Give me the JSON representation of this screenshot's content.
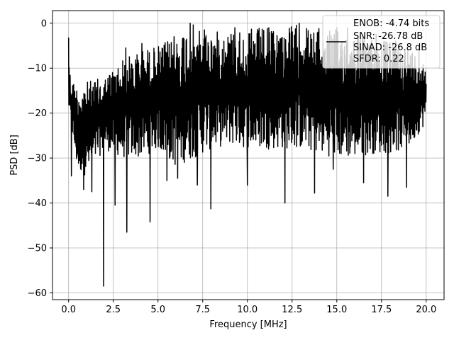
{
  "chart_data": {
    "type": "line",
    "title": "",
    "xlabel": "Frequency [MHz]",
    "ylabel": "PSD [dB]",
    "xlim": [
      -0.9,
      21.0
    ],
    "ylim": [
      -61.5,
      2.8
    ],
    "xticks": [
      0.0,
      2.5,
      5.0,
      7.5,
      10.0,
      12.5,
      15.0,
      17.5,
      20.0
    ],
    "xtick_labels": [
      "0.0",
      "2.5",
      "5.0",
      "7.5",
      "10.0",
      "12.5",
      "15.0",
      "17.5",
      "20.0"
    ],
    "yticks": [
      0,
      -10,
      -20,
      -30,
      -40,
      -50,
      -60
    ],
    "ytick_labels": [
      "0",
      "−10",
      "−20",
      "−30",
      "−40",
      "−50",
      "−60"
    ],
    "grid": true,
    "legend_position": "top-right",
    "series": [
      {
        "color": "#000000",
        "x_start": 0.0,
        "x_end": 20.0,
        "description": "noisy PSD trace, approx. -10 to -30 dB band",
        "envelope_upper": [
          [
            0,
            -3
          ],
          [
            0.1,
            -12
          ],
          [
            0.5,
            -14
          ],
          [
            1,
            -13
          ],
          [
            2,
            -12
          ],
          [
            3,
            -8
          ],
          [
            4,
            -6
          ],
          [
            5,
            -5
          ],
          [
            6,
            -3
          ],
          [
            6.8,
            0
          ],
          [
            8,
            -2
          ],
          [
            10,
            -1
          ],
          [
            12,
            -1
          ],
          [
            13,
            0
          ],
          [
            14,
            -2
          ],
          [
            15,
            -1
          ],
          [
            16,
            -2
          ],
          [
            17,
            -3
          ],
          [
            18,
            -4
          ],
          [
            19,
            -5
          ],
          [
            20,
            -9
          ]
        ],
        "envelope_lower": [
          [
            0,
            -20
          ],
          [
            0.5,
            -33
          ],
          [
            1,
            -34
          ],
          [
            2,
            -28
          ],
          [
            3,
            -30
          ],
          [
            4,
            -30
          ],
          [
            5,
            -28
          ],
          [
            6,
            -32
          ],
          [
            7,
            -30
          ],
          [
            8,
            -28
          ],
          [
            9,
            -27
          ],
          [
            10,
            -28
          ],
          [
            11,
            -28
          ],
          [
            12,
            -28
          ],
          [
            13,
            -28
          ],
          [
            14,
            -29
          ],
          [
            15,
            -30
          ],
          [
            16,
            -30
          ],
          [
            17,
            -29
          ],
          [
            18,
            -29
          ],
          [
            19,
            -28
          ],
          [
            20,
            -22
          ]
        ],
        "dips": [
          [
            0.15,
            -34
          ],
          [
            0.85,
            -37
          ],
          [
            1.3,
            -37.5
          ],
          [
            1.95,
            -58.5
          ],
          [
            2.6,
            -40.5
          ],
          [
            3.25,
            -46.5
          ],
          [
            4.55,
            -44.2
          ],
          [
            5.5,
            -35
          ],
          [
            6.1,
            -34.5
          ],
          [
            7.2,
            -36
          ],
          [
            7.95,
            -41.3
          ],
          [
            10.0,
            -36
          ],
          [
            12.1,
            -40
          ],
          [
            13.75,
            -37.8
          ],
          [
            14.8,
            -32.5
          ],
          [
            16.5,
            -35.5
          ],
          [
            17.85,
            -38.5
          ],
          [
            18.9,
            -36.5
          ]
        ],
        "peaks": [
          [
            0.0,
            -3.2
          ],
          [
            3.2,
            -5.5
          ],
          [
            4.1,
            -4.5
          ],
          [
            5.9,
            -3.0
          ],
          [
            6.8,
            0.0
          ],
          [
            7.6,
            -1.5
          ],
          [
            9.3,
            -1.0
          ],
          [
            11.2,
            -1.0
          ],
          [
            12.9,
            0.0
          ],
          [
            14.0,
            -1.2
          ],
          [
            15.6,
            -1.0
          ],
          [
            17.2,
            -2.5
          ],
          [
            18.3,
            -4.0
          ],
          [
            19.6,
            -5.0
          ]
        ]
      }
    ]
  },
  "legend": {
    "lines": [
      "ENOB: -4.74 bits",
      "SNR: -26.78 dB",
      "SINAD: -26.8 dB",
      "SFDR: 0.22"
    ]
  }
}
